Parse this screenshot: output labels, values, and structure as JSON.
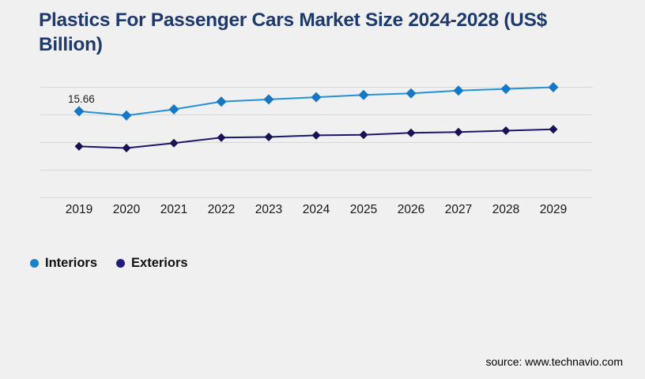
{
  "page": {
    "background": "#f0f0f0"
  },
  "header": {
    "title_line1": "Plastics For Passenger Cars Market Size 2024-2028 (US$",
    "title_line2": "Billion)",
    "title_color": "#1e3a6d"
  },
  "chart_data": {
    "type": "line",
    "title": "Plastics For Passenger Cars Market Size 2024-2028 (US$ Billion)",
    "x": [
      "2019",
      "2020",
      "2021",
      "2022",
      "2023",
      "2024",
      "2025",
      "2026",
      "2027",
      "2028",
      "2029"
    ],
    "series": [
      {
        "name": "Interiors",
        "line_color": "#2491d4",
        "marker_color": "#1478ca",
        "values": [
          15.66,
          14.9,
          16.0,
          17.4,
          17.8,
          18.2,
          18.6,
          18.9,
          19.4,
          19.7,
          20.0
        ]
      },
      {
        "name": "Exteriors",
        "line_color": "#1c166b",
        "marker_color": "#181253",
        "values": [
          9.3,
          9.0,
          9.9,
          10.9,
          11.0,
          11.3,
          11.4,
          11.75,
          11.9,
          12.15,
          12.4
        ]
      }
    ],
    "annotations": [
      {
        "series": "Interiors",
        "x": "2019",
        "label": "15.66"
      }
    ],
    "xlabel": "",
    "ylabel": "",
    "ylim": [
      0,
      20
    ],
    "gridline_values": [
      0,
      5,
      10,
      15,
      20
    ],
    "grid": true,
    "y_axis_labels_shown": false,
    "legend_position": "bottom-left",
    "gridline_color": "#d7d7d8"
  },
  "legend": {
    "items": [
      {
        "label": "Interiors",
        "color": "#1583d3"
      },
      {
        "label": "Exteriors",
        "color": "#221c7d"
      }
    ]
  },
  "footer": {
    "source_text": "source: www.technavio.com"
  }
}
